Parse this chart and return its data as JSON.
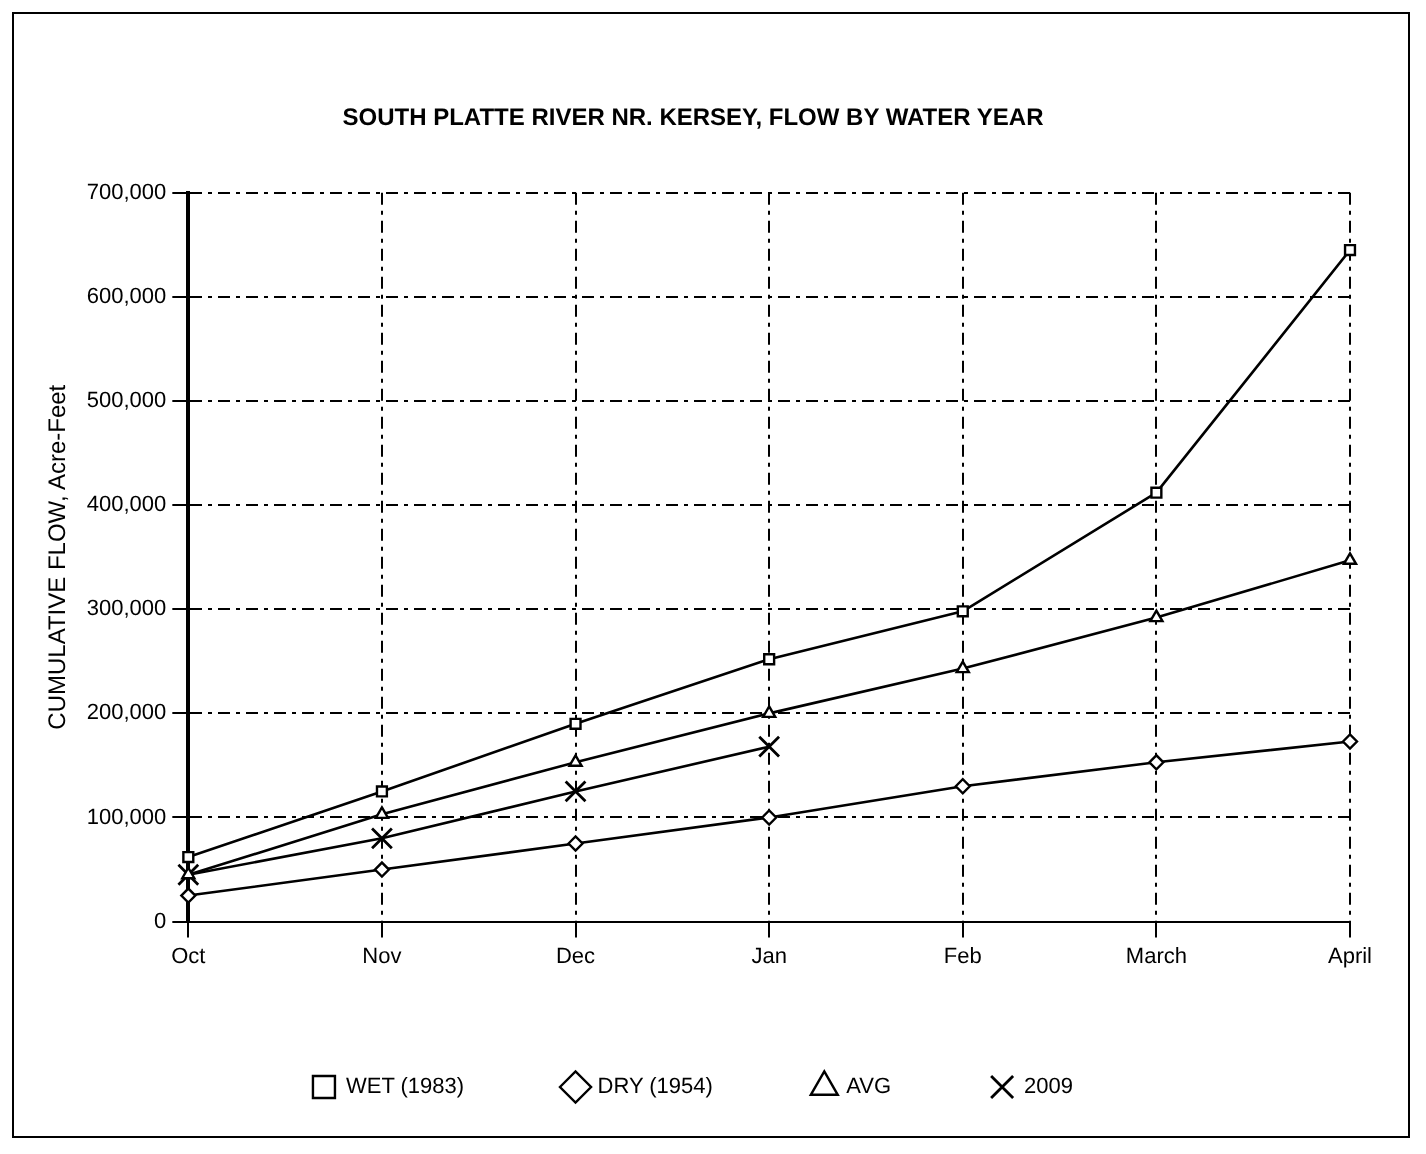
{
  "chart_data": {
    "type": "line",
    "title": "SOUTH PLATTE RIVER NR. KERSEY, FLOW BY WATER YEAR",
    "ylabel": "CUMULATIVE FLOW, Acre-Feet",
    "categories": [
      "Oct",
      "Nov",
      "Dec",
      "Jan",
      "Feb",
      "March",
      "April"
    ],
    "series": [
      {
        "name": "WET (1983)",
        "color": "#000000",
        "marker": "square",
        "values": [
          62000,
          125000,
          190000,
          252000,
          298000,
          412000,
          645000
        ]
      },
      {
        "name": "DRY (1954)",
        "color": "#000000",
        "marker": "diamond",
        "values": [
          25000,
          50000,
          75000,
          100000,
          130000,
          153000,
          173000
        ]
      },
      {
        "name": "AVG",
        "color": "#000000",
        "marker": "triangle",
        "values": [
          45000,
          103000,
          153000,
          200000,
          243000,
          292000,
          347000
        ]
      },
      {
        "name": "2009",
        "color": "#000000",
        "marker": "cross",
        "values": [
          45000,
          80000,
          125000,
          168000,
          null,
          null,
          null
        ]
      }
    ],
    "ylim": [
      0,
      700000
    ],
    "yticks": [
      {
        "value": 0,
        "label": "0"
      },
      {
        "value": 100000,
        "label": "100,000"
      },
      {
        "value": 200000,
        "label": "200,000"
      },
      {
        "value": 300000,
        "label": "300,000"
      },
      {
        "value": 400000,
        "label": "400,000"
      },
      {
        "value": 500000,
        "label": "500,000"
      },
      {
        "value": 600000,
        "label": "600,000"
      },
      {
        "value": 700000,
        "label": "700,000"
      }
    ],
    "grid": true,
    "legend": "bottom",
    "line_style": "solid"
  }
}
